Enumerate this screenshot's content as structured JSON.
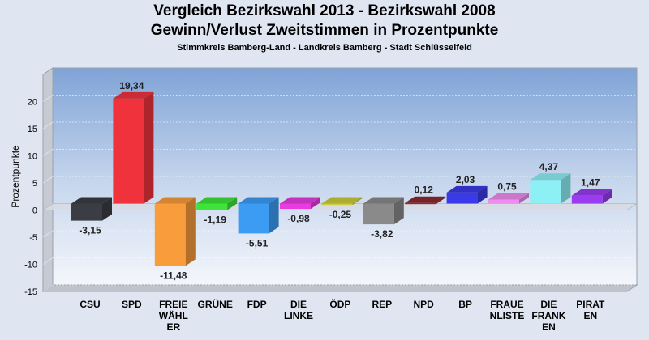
{
  "chart_data": {
    "type": "bar",
    "title": "Vergleich Bezirkswahl 2013 - Bezirkswahl 2008",
    "subtitle": "Gewinn/Verlust Zweitstimmen in Prozentpunkte",
    "subtitle2": "Stimmkreis Bamberg-Land - Landkreis Bamberg - Stadt Schlüsselfeld",
    "ylabel": "Prozentpunkte",
    "xlabel": "",
    "ylim": [
      -15,
      25
    ],
    "yticks": [
      "20",
      "15",
      "10",
      "5",
      "0",
      "-5",
      "-10",
      "-15"
    ],
    "grid": true,
    "categories": [
      [
        "CSU"
      ],
      [
        "SPD"
      ],
      [
        "FREIE",
        "WÄHL",
        "ER"
      ],
      [
        "GRÜNE"
      ],
      [
        "FDP"
      ],
      [
        "DIE",
        "LINKE"
      ],
      [
        "ÖDP"
      ],
      [
        "REP"
      ],
      [
        "NPD"
      ],
      [
        "BP"
      ],
      [
        "FRAUE",
        "NLISTE"
      ],
      [
        "DIE",
        "FRANK",
        "EN"
      ],
      [
        "PIRAT",
        "EN"
      ]
    ],
    "values": [
      -3.15,
      19.34,
      -11.48,
      -1.19,
      -5.51,
      -0.98,
      -0.25,
      -3.82,
      0.12,
      2.03,
      0.75,
      4.37,
      1.47
    ],
    "labels": [
      "-3,15",
      "19,34",
      "-11,48",
      "-1,19",
      "-5,51",
      "-0,98",
      "-0,25",
      "-3,82",
      "0,12",
      "2,03",
      "0,75",
      "4,37",
      "1,47"
    ],
    "colors": [
      "#3a3d44",
      "#f0323c",
      "#f89c3c",
      "#3ee43a",
      "#3c9cf4",
      "#e63ce0",
      "#cccc3a",
      "#8a8a8a",
      "#8c2a30",
      "#3a3ae8",
      "#f08cf0",
      "#8cf0f4",
      "#9a3cf0"
    ]
  }
}
